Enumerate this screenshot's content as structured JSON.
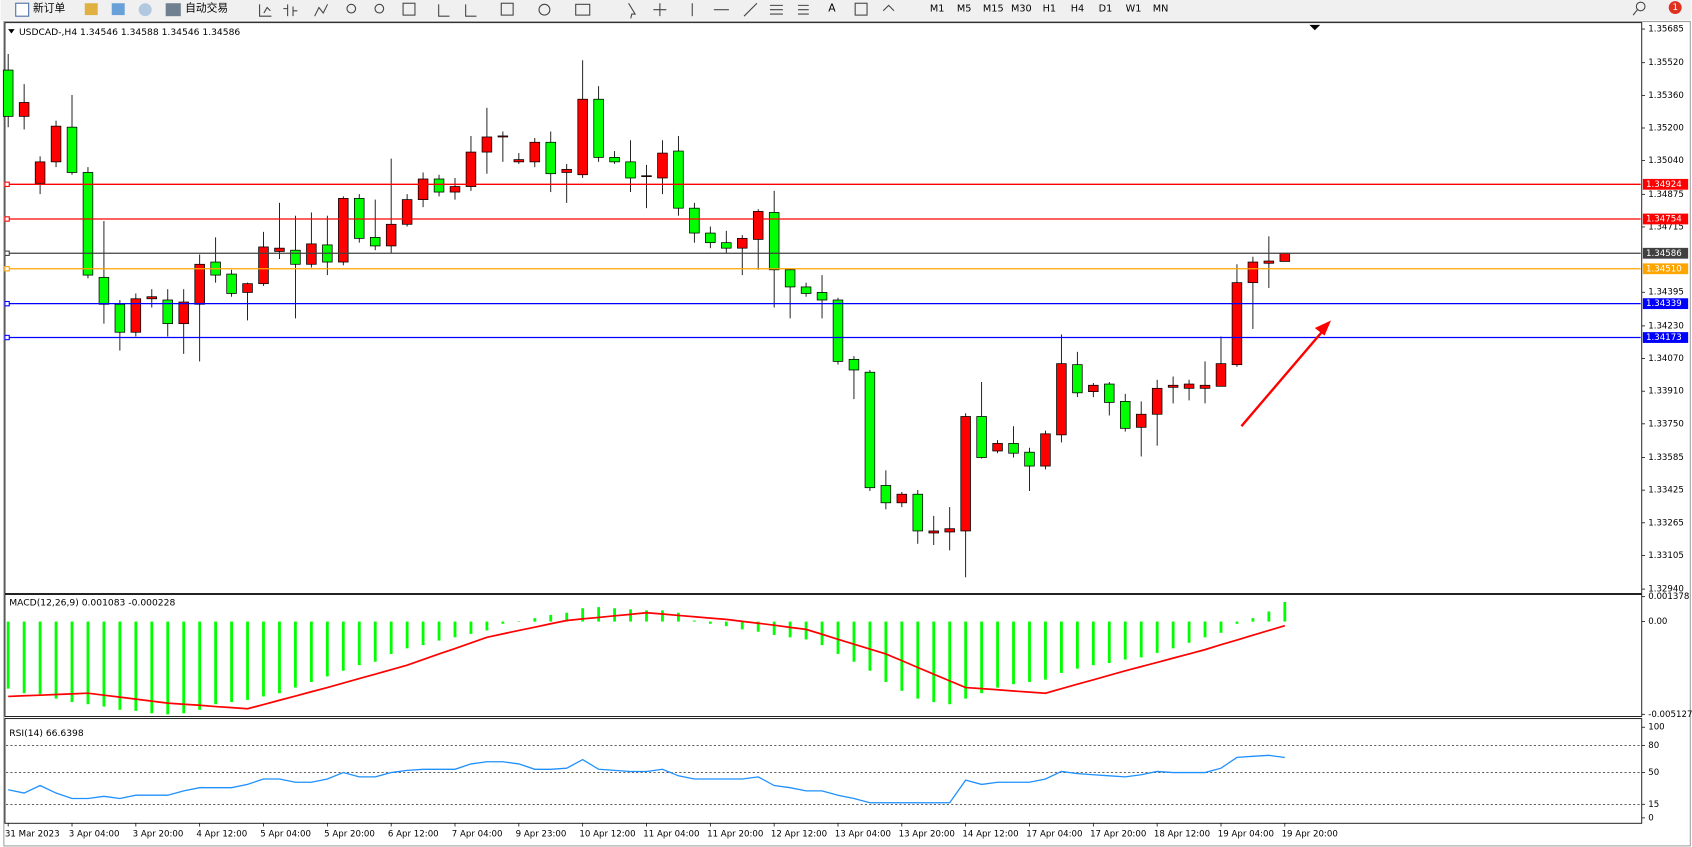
{
  "toolbar": {
    "new_order": "新订单",
    "auto_trading": "自动交易",
    "timeframes": [
      "M1",
      "M5",
      "M15",
      "M30",
      "H1",
      "H4",
      "D1",
      "W1",
      "MN"
    ],
    "notifications": 1
  },
  "chart_data": [
    {
      "type": "candlestick",
      "title": "USDCAD-,H4  1.34546 1.34588 1.34546 1.34586",
      "categories": [
        "31 Mar 2023",
        null,
        null,
        null,
        "3 Apr 04:00",
        null,
        null,
        null,
        "3 Apr 20:00",
        null,
        null,
        null,
        "4 Apr 12:00",
        null,
        null,
        null,
        "5 Apr 04:00",
        null,
        null,
        null,
        "5 Apr 20:00",
        null,
        null,
        null,
        "6 Apr 12:00",
        null,
        null,
        null,
        "7 Apr 04:00",
        null,
        null,
        null,
        "9 Apr 23:00",
        null,
        null,
        null,
        "10 Apr 12:00",
        null,
        null,
        null,
        "11 Apr 04:00",
        null,
        null,
        null,
        "11 Apr 20:00",
        null,
        null,
        null,
        "12 Apr 12:00",
        null,
        null,
        null,
        "13 Apr 04:00",
        null,
        null,
        null,
        "13 Apr 20:00",
        null,
        null,
        null,
        "14 Apr 12:00",
        null,
        null,
        null,
        "17 Apr 04:00",
        null,
        null,
        null,
        "17 Apr 20:00",
        null,
        null,
        null,
        "18 Apr 12:00",
        null,
        null,
        null,
        "19 Apr 04:00",
        null,
        null,
        null,
        "19 Apr 20:00"
      ],
      "open": [
        1.35484,
        1.35257,
        1.34929,
        1.35034,
        1.35204,
        1.34982,
        1.34468,
        1.34336,
        1.34199,
        1.34363,
        1.34357,
        1.34241,
        1.34336,
        1.34543,
        1.34484,
        1.34394,
        1.34437,
        1.34595,
        1.34601,
        1.34532,
        1.34627,
        1.34543,
        1.34855,
        1.34664,
        1.34622,
        1.34728,
        1.34849,
        1.3495,
        1.34886,
        1.34913,
        1.35082,
        1.35156,
        1.35034,
        1.35034,
        1.3513,
        1.34982,
        1.34971,
        1.35341,
        1.35056,
        1.35034,
        1.34966,
        1.34955,
        1.35087,
        1.34807,
        1.34685,
        1.34638,
        1.34611,
        1.34654,
        1.34786,
        1.34505,
        1.34421,
        1.34394,
        1.34357,
        1.34066,
        1.34003,
        1.33448,
        1.33363,
        1.33405,
        1.33215,
        1.3322,
        1.33225,
        1.33786,
        1.33617,
        1.33654,
        1.33611,
        1.33543,
        1.33696,
        1.3404,
        1.33908,
        1.33945,
        1.3386,
        1.33733,
        1.33797,
        1.33929,
        1.33924,
        1.33924,
        1.33934,
        1.3404,
        1.34442,
        1.34537,
        1.34546
      ],
      "high": [
        1.35563,
        1.35415,
        1.35061,
        1.35236,
        1.35362,
        1.35008,
        1.34744,
        1.34357,
        1.34389,
        1.3441,
        1.3441,
        1.3441,
        1.3458,
        1.34664,
        1.34505,
        1.34442,
        1.34691,
        1.34833,
        1.3477,
        1.34786,
        1.3477,
        1.34865,
        1.34876,
        1.34849,
        1.3505,
        1.34876,
        1.34982,
        1.34971,
        1.34955,
        1.35161,
        1.35299,
        1.35183,
        1.35077,
        1.35151,
        1.35183,
        1.35024,
        1.35532,
        1.35405,
        1.35087,
        1.3514,
        1.35019,
        1.3514,
        1.35161,
        1.34833,
        1.34717,
        1.34696,
        1.34675,
        1.34802,
        1.34892,
        1.34511,
        1.34442,
        1.34479,
        1.34368,
        1.34082,
        1.34014,
        1.33522,
        1.33416,
        1.33426,
        1.33299,
        1.33342,
        1.33802,
        1.33955,
        1.3367,
        1.33738,
        1.33633,
        1.33717,
        1.34188,
        1.34103,
        1.3395,
        1.33955,
        1.33897,
        1.3386,
        1.33966,
        1.33982,
        1.33966,
        1.34056,
        1.34178,
        1.34532,
        1.34569,
        1.34669,
        1.34588
      ],
      "low": [
        1.35204,
        1.35193,
        1.34876,
        1.35008,
        1.34971,
        1.34463,
        1.34241,
        1.34109,
        1.34178,
        1.3432,
        1.34178,
        1.34093,
        1.34056,
        1.34442,
        1.34373,
        1.34257,
        1.34426,
        1.34558,
        1.34267,
        1.34516,
        1.34479,
        1.34527,
        1.34638,
        1.34601,
        1.34585,
        1.34717,
        1.34812,
        1.34865,
        1.34849,
        1.34892,
        1.34976,
        1.35034,
        1.35024,
        1.35008,
        1.34886,
        1.34833,
        1.34955,
        1.35034,
        1.35024,
        1.34886,
        1.34807,
        1.34876,
        1.3477,
        1.34638,
        1.34611,
        1.34585,
        1.34479,
        1.34505,
        1.3432,
        1.34267,
        1.34373,
        1.34267,
        1.3404,
        1.33871,
        1.33421,
        1.33331,
        1.33342,
        1.33162,
        1.33156,
        1.3313,
        1.32998,
        1.3358,
        1.33606,
        1.33585,
        1.33421,
        1.33527,
        1.33659,
        1.33881,
        1.33881,
        1.33791,
        1.33712,
        1.3359,
        1.33643,
        1.3385,
        1.33865,
        1.3385,
        1.33934,
        1.34029,
        1.34215,
        1.34416,
        1.34546
      ],
      "close": [
        1.35257,
        1.35325,
        1.35034,
        1.35209,
        1.34982,
        1.34479,
        1.34336,
        1.34199,
        1.34363,
        1.34373,
        1.34241,
        1.34347,
        1.34532,
        1.34479,
        1.34389,
        1.34437,
        1.34617,
        1.34611,
        1.34532,
        1.34632,
        1.34543,
        1.34855,
        1.34659,
        1.34622,
        1.34728,
        1.34849,
        1.3495,
        1.34886,
        1.34913,
        1.35082,
        1.35156,
        1.35161,
        1.35045,
        1.3513,
        1.34976,
        1.34997,
        1.35341,
        1.35056,
        1.35034,
        1.34955,
        1.34966,
        1.35077,
        1.34807,
        1.34685,
        1.34638,
        1.34611,
        1.34659,
        1.34791,
        1.34505,
        1.34421,
        1.34389,
        1.34357,
        1.34056,
        1.34014,
        1.33437,
        1.33363,
        1.33405,
        1.33225,
        1.33225,
        1.33236,
        1.33786,
        1.33585,
        1.33654,
        1.33606,
        1.33543,
        1.33701,
        1.34045,
        1.33902,
        1.33939,
        1.33855,
        1.33728,
        1.33797,
        1.33924,
        1.33939,
        1.33945,
        1.33939,
        1.34045,
        1.34442,
        1.34543,
        1.34548,
        1.34586
      ],
      "up_color": "#ff0000",
      "down_color": "#00ff00",
      "ylim": [
        1.32924,
        1.35711
      ],
      "yticks": [
        1.35685,
        {
          "value": 1.3552,
          "label": "1.35520"
        },
        {
          "value": 1.3536,
          "label": "1.35360"
        },
        {
          "value": 1.352,
          "label": "1.35200"
        },
        {
          "value": 1.3504,
          "label": "1.35040"
        },
        1.34875,
        1.34715,
        1.34395,
        {
          "value": 1.3423,
          "label": "1.34230"
        },
        {
          "value": 1.3407,
          "label": "1.34070"
        },
        {
          "value": 1.3391,
          "label": "1.33910"
        },
        {
          "value": 1.3375,
          "label": "1.33750"
        },
        1.33585,
        1.33425,
        1.33265,
        1.33105,
        {
          "value": 1.3294,
          "label": "1.32940"
        }
      ],
      "levels": [
        {
          "value": 1.34924,
          "color": "#ff0000"
        },
        {
          "value": 1.34754,
          "color": "#ff0000"
        },
        {
          "value": 1.34586,
          "color": "#404040"
        },
        {
          "value": 1.3451,
          "label": "1.34510",
          "color": "#ffa500"
        },
        {
          "value": 1.34339,
          "color": "#0000ff"
        },
        {
          "value": 1.34173,
          "color": "#0000ff"
        }
      ]
    },
    {
      "type": "macd",
      "title": "MACD(12,26,9) 0.001083 -0.000228",
      "histogram": [
        -0.00371,
        -0.00396,
        -0.00402,
        -0.00426,
        -0.00445,
        -0.00457,
        -0.0047,
        -0.00488,
        -0.00494,
        -0.00507,
        -0.00513,
        -0.00507,
        -0.00488,
        -0.00457,
        -0.00445,
        -0.00433,
        -0.00414,
        -0.00396,
        -0.00365,
        -0.00334,
        -0.00303,
        -0.00272,
        -0.00241,
        -0.00222,
        -0.00179,
        -0.00148,
        -0.0013,
        -0.00105,
        -0.00087,
        -0.00068,
        -0.00049,
        -0.00012,
        3e-05,
        0.00019,
        0.00037,
        0.00049,
        0.00074,
        0.0008,
        0.00074,
        0.00068,
        0.00062,
        0.00062,
        0.00049,
        6e-05,
        -0.00012,
        -0.00025,
        -0.00043,
        -0.00056,
        -0.00074,
        -0.00087,
        -0.00099,
        -0.0013,
        -0.00179,
        -0.00222,
        -0.00272,
        -0.00334,
        -0.00383,
        -0.00426,
        -0.00445,
        -0.00457,
        -0.00426,
        -0.00396,
        -0.00365,
        -0.00346,
        -0.00334,
        -0.00321,
        -0.00284,
        -0.0026,
        -0.00241,
        -0.00229,
        -0.0021,
        -0.00198,
        -0.00173,
        -0.00148,
        -0.00117,
        -0.00087,
        -0.00062,
        -0.00012,
        0.00019,
        0.00056,
        0.001083
      ],
      "signal": [
        -0.00414,
        -0.0041,
        -0.00407,
        -0.00403,
        -0.004,
        -0.00396,
        -0.00407,
        -0.00418,
        -0.00429,
        -0.0044,
        -0.00451,
        -0.00457,
        -0.00463,
        -0.0047,
        -0.00476,
        -0.00482,
        -0.00459,
        -0.00435,
        -0.00412,
        -0.00388,
        -0.00365,
        -0.0034,
        -0.00315,
        -0.00291,
        -0.00266,
        -0.00241,
        -0.0021,
        -0.00179,
        -0.00149,
        -0.00118,
        -0.00087,
        -0.00068,
        -0.00049,
        -0.00031,
        -0.00012,
        6e-05,
        0.00015,
        0.00023,
        0.00032,
        0.0004,
        0.00049,
        0.00042,
        0.00034,
        0.00027,
        0.00019,
        0.00012,
        1e-05,
        -9e-05,
        -0.0002,
        -0.00032,
        -0.00043,
        -0.0007,
        -0.00098,
        -0.00125,
        -0.00152,
        -0.00179,
        -0.00216,
        -0.00254,
        -0.00291,
        -0.00328,
        -0.00365,
        -0.00371,
        -0.00377,
        -0.00384,
        -0.0039,
        -0.00396,
        -0.00371,
        -0.00346,
        -0.00322,
        -0.00297,
        -0.00272,
        -0.00249,
        -0.00226,
        -0.00202,
        -0.00179,
        -0.00155,
        -0.00128,
        -0.00102,
        -0.00075,
        -0.00049,
        -0.000228
      ],
      "histogram_color": "#00ff00",
      "signal_color": "#ff0000",
      "ylim": [
        -0.005127,
        0.001378
      ],
      "yticks": [
        0.001378,
        {
          "value": 0,
          "label": "0.00"
        },
        -0.005127
      ]
    },
    {
      "type": "line",
      "title": "RSI(14) 66.6398",
      "values": [
        31,
        27.4,
        35.7,
        27.4,
        21.4,
        21.4,
        23.8,
        21.4,
        25,
        25,
        25,
        29.8,
        33.3,
        33.3,
        33.3,
        36.9,
        42.9,
        42.9,
        39.3,
        39.3,
        42.9,
        50,
        45.2,
        45.2,
        50,
        52.4,
        53.6,
        53.6,
        53.6,
        59.5,
        61.9,
        61.9,
        59.5,
        53.6,
        53.6,
        54.8,
        64.3,
        53.6,
        52.4,
        51.2,
        51.2,
        53.6,
        46.4,
        42.9,
        42.9,
        42.9,
        42.9,
        45.2,
        35.7,
        33.3,
        29.8,
        29.8,
        25,
        21.4,
        16.7,
        16.7,
        16.7,
        16.7,
        16.7,
        16.7,
        41.7,
        36.9,
        39.3,
        39.3,
        39.3,
        42.9,
        51.2,
        48.8,
        47.6,
        46.4,
        45.2,
        47.6,
        51.2,
        50,
        50,
        50,
        54.8,
        66.7,
        67.9,
        69,
        66.6398
      ],
      "color": "#1e90ff",
      "ylim": [
        0,
        100
      ],
      "yticks": [
        100,
        80,
        50,
        15,
        0
      ],
      "levels": [
        80,
        50,
        15
      ]
    }
  ]
}
